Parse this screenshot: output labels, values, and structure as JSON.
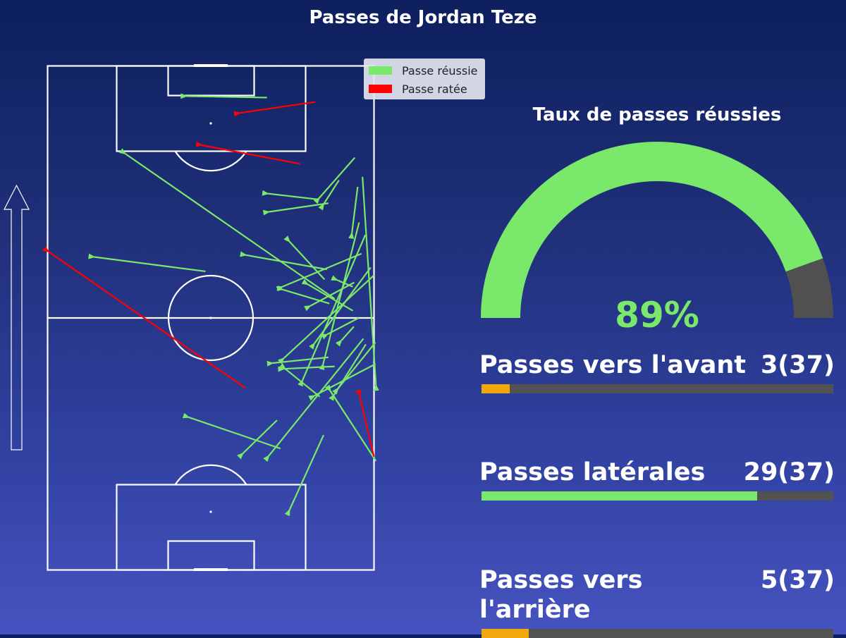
{
  "title": "Passes de Jordan Teze",
  "legend": {
    "success_label": "Passe réussie",
    "fail_label": "Passe ratée",
    "success_color": "#7ae86a",
    "fail_color": "#ff0000"
  },
  "gauge": {
    "title": "Taux de passes réussies",
    "value_label": "89%",
    "success_rate": 0.89,
    "success_color": "#7ae86a",
    "remainder_color": "#505050"
  },
  "stats": [
    {
      "label": "Passes vers l'avant",
      "value_label": "3(37)",
      "count": 3,
      "total": 37,
      "color": "#f0a80c"
    },
    {
      "label": "Passes latérales",
      "value_label": "29(37)",
      "count": 29,
      "total": 37,
      "color": "#7ae86a"
    },
    {
      "label": "Passes vers l'arrière",
      "value_label": "5(37)",
      "count": 5,
      "total": 37,
      "color": "#f0a80c"
    }
  ],
  "chart_data": {
    "type": "scatter",
    "pitch": {
      "length": 105,
      "width": 68,
      "attack_direction": "up"
    },
    "series": [
      {
        "name": "Passe réussie",
        "passes": [
          {
            "start": [
              45.7,
              98.4
            ],
            "end": [
              28.9,
              98.7
            ]
          },
          {
            "start": [
              64.0,
              85.9
            ],
            "end": [
              56.6,
              77.5
            ]
          },
          {
            "start": [
              60.7,
              81.2
            ],
            "end": [
              57.5,
              76.2
            ]
          },
          {
            "start": [
              56.3,
              77.2
            ],
            "end": [
              45.9,
              78.4
            ]
          },
          {
            "start": [
              58.5,
              76.4
            ],
            "end": [
              46.1,
              74.6
            ]
          },
          {
            "start": [
              32.9,
              62.2
            ],
            "end": [
              9.7,
              65.2
            ]
          },
          {
            "start": [
              58.2,
              62.6
            ],
            "end": [
              41.3,
              65.6
            ]
          },
          {
            "start": [
              65.4,
              65.9
            ],
            "end": [
              48.9,
              59.0
            ]
          },
          {
            "start": [
              57.7,
              60.5
            ],
            "end": [
              50.4,
              68.4
            ]
          },
          {
            "start": [
              63.6,
              54.0
            ],
            "end": [
              54.2,
              59.5
            ]
          },
          {
            "start": [
              63.6,
              59.0
            ],
            "end": [
              60.3,
              60.4
            ]
          },
          {
            "start": [
              58.7,
              55.5
            ],
            "end": [
              49.0,
              58.4
            ]
          },
          {
            "start": [
              63.9,
              59.9
            ],
            "end": [
              54.7,
              55.0
            ]
          },
          {
            "start": [
              65.6,
              81.9
            ],
            "end": [
              68.4,
              38.5
            ]
          },
          {
            "start": [
              64.9,
              72.4
            ],
            "end": [
              57.4,
              42.9
            ]
          },
          {
            "start": [
              64.6,
              79.8
            ],
            "end": [
              63.4,
              70.2
            ]
          },
          {
            "start": [
              68.0,
              61.4
            ],
            "end": [
              49.2,
              44.1
            ]
          },
          {
            "start": [
              67.3,
              63.0
            ],
            "end": [
              55.6,
              47.2
            ]
          },
          {
            "start": [
              66.2,
              69.8
            ],
            "end": [
              53.1,
              39.5
            ]
          },
          {
            "start": [
              68.3,
              47.4
            ],
            "end": [
              60.5,
              37.8
            ]
          },
          {
            "start": [
              58.5,
              44.3
            ],
            "end": [
              46.9,
              43.1
            ]
          },
          {
            "start": [
              59.8,
              42.4
            ],
            "end": [
              49.2,
              41.9
            ]
          },
          {
            "start": [
              56.7,
              36.1
            ],
            "end": [
              49.5,
              41.9
            ]
          },
          {
            "start": [
              66.3,
              47.0
            ],
            "end": [
              59.7,
              36.5
            ]
          },
          {
            "start": [
              64.8,
              52.5
            ],
            "end": [
              58.3,
              49.1
            ]
          },
          {
            "start": [
              65.8,
              48.2
            ],
            "end": [
              46.1,
              23.8
            ]
          },
          {
            "start": [
              47.8,
              31.2
            ],
            "end": [
              40.7,
              24.3
            ]
          },
          {
            "start": [
              48.5,
              25.3
            ],
            "end": [
              29.4,
              31.8
            ]
          },
          {
            "start": [
              57.5,
              28.1
            ],
            "end": [
              50.4,
              12.5
            ]
          },
          {
            "start": [
              68.4,
              22.7
            ],
            "end": [
              58.9,
              37.3
            ]
          },
          {
            "start": [
              68.3,
              42.9
            ],
            "end": [
              55.6,
              36.3
            ]
          },
          {
            "start": [
              59.8,
              56.5
            ],
            "end": [
              16.2,
              86.7
            ]
          },
          {
            "start": [
              63.8,
              50.7
            ],
            "end": [
              61.2,
              47.8
            ]
          }
        ]
      },
      {
        "name": "Passe ratée",
        "passes": [
          {
            "start": [
              55.8,
              97.5
            ],
            "end": [
              40.0,
              95.2
            ]
          },
          {
            "start": [
              52.6,
              84.6
            ],
            "end": [
              32.1,
              88.5
            ]
          },
          {
            "start": [
              41.2,
              37.9
            ],
            "end": [
              0.2,
              66.3
            ]
          },
          {
            "start": [
              68.0,
              23.6
            ],
            "end": [
              65.0,
              36.3
            ]
          }
        ]
      }
    ]
  }
}
